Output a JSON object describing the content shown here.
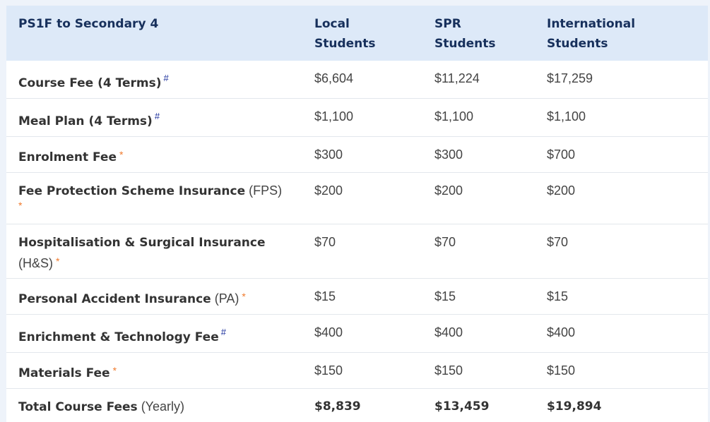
{
  "table": {
    "headers": [
      {
        "line1": "PS1F to Secondary 4",
        "line2": ""
      },
      {
        "line1": "Local",
        "line2": "Students"
      },
      {
        "line1": "SPR",
        "line2": "Students"
      },
      {
        "line1": "International",
        "line2": "Students"
      }
    ],
    "rows": [
      {
        "label": "Course Fee (4 Terms)",
        "suffix": "",
        "mark": "#",
        "local": "$6,604",
        "spr": "$11,224",
        "intl": "$17,259"
      },
      {
        "label": "Meal Plan (4 Terms)",
        "suffix": "",
        "mark": "#",
        "local": "$1,100",
        "spr": "$1,100",
        "intl": "$1,100"
      },
      {
        "label": "Enrolment Fee",
        "suffix": "",
        "mark": "*",
        "local": "$300",
        "spr": "$300",
        "intl": "$700"
      },
      {
        "label": "Fee Protection Scheme Insurance",
        "suffix": "(FPS)",
        "mark": "*",
        "local": "$200",
        "spr": "$200",
        "intl": "$200"
      },
      {
        "label": "Hospitalisation & Surgical Insurance",
        "suffix": "(H&S)",
        "mark": "*",
        "local": "$70",
        "spr": "$70",
        "intl": "$70"
      },
      {
        "label": "Personal Accident Insurance",
        "suffix": "(PA)",
        "mark": "*",
        "local": "$15",
        "spr": "$15",
        "intl": "$15"
      },
      {
        "label": "Enrichment & Technology Fee",
        "suffix": "",
        "mark": "#",
        "local": "$400",
        "spr": "$400",
        "intl": "$400"
      },
      {
        "label": "Materials Fee",
        "suffix": "",
        "mark": "*",
        "local": "$150",
        "spr": "$150",
        "intl": "$150"
      }
    ],
    "total": {
      "label": "Total Course Fees",
      "suffix": "(Yearly)",
      "local": "$8,839",
      "spr": "$13,459",
      "intl": "$19,894"
    }
  },
  "colors": {
    "header_bg": "#dde9f8",
    "header_text": "#17305c",
    "hash_mark": "#1b2f9c",
    "star_mark": "#f07a2c"
  }
}
